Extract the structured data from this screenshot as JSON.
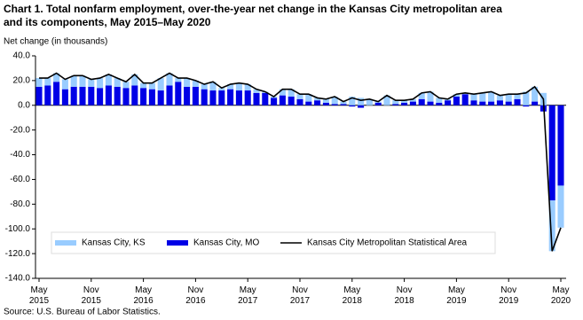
{
  "chart_data": {
    "type": "stacked-bar-line",
    "title": "Chart 1. Total nonfarm employment, over-the-year net change in the Kansas  City metropolitan area and its components, May 2015–May  2020",
    "y_label": "Net change (in thousands)",
    "source": "Source: U.S. Bureau of Labor Statistics.",
    "categories": [
      "May 2015",
      null,
      null,
      null,
      null,
      null,
      "Nov 2015",
      null,
      null,
      null,
      null,
      null,
      "May 2016",
      null,
      null,
      null,
      null,
      null,
      "Nov 2016",
      null,
      null,
      null,
      null,
      null,
      "May 2017",
      null,
      null,
      null,
      null,
      null,
      "Nov 2017",
      null,
      null,
      null,
      null,
      null,
      "May 2018",
      null,
      null,
      null,
      null,
      null,
      "Nov 2018",
      null,
      null,
      null,
      null,
      null,
      "May 2019",
      null,
      null,
      null,
      null,
      null,
      "Nov 2019",
      null,
      null,
      null,
      null,
      null,
      "May 2020"
    ],
    "series": [
      {
        "name": "Kansas City, KS",
        "kind": "bar",
        "color": "#99ccff",
        "values": [
          7,
          6,
          7,
          8,
          9,
          9,
          6,
          8,
          9,
          7,
          5,
          9,
          4,
          5,
          10,
          10,
          3,
          7,
          5,
          4,
          7,
          2,
          4,
          6,
          5,
          3,
          1,
          1,
          5,
          6,
          4,
          6,
          2,
          3,
          6,
          2,
          7,
          6,
          5,
          1,
          8,
          3,
          2,
          2,
          5,
          8,
          4,
          1,
          2,
          1,
          5,
          7,
          8,
          4,
          6,
          4,
          11,
          12,
          10,
          -41,
          -34
        ]
      },
      {
        "name": "Kansas City, MO",
        "kind": "bar",
        "color": "#0000e6",
        "values": [
          15,
          16,
          19,
          13,
          15,
          15,
          15,
          14,
          16,
          15,
          14,
          16,
          14,
          13,
          12,
          16,
          19,
          15,
          15,
          13,
          12,
          12,
          13,
          12,
          12,
          10,
          10,
          6,
          8,
          7,
          5,
          3,
          4,
          2,
          1,
          1,
          -1,
          -2,
          0,
          2,
          0,
          1,
          2,
          3,
          5,
          3,
          2,
          4,
          7,
          9,
          4,
          3,
          3,
          4,
          3,
          5,
          -1,
          3,
          -5,
          -77,
          -65
        ]
      },
      {
        "name": "Kansas City Metropolitan Statistical Area",
        "kind": "line",
        "color": "#000000",
        "values": [
          22,
          22,
          26,
          21,
          24,
          24,
          21,
          22,
          25,
          22,
          19,
          25,
          18,
          18,
          22,
          26,
          22,
          22,
          20,
          17,
          19,
          14,
          17,
          18,
          17,
          13,
          11,
          7,
          13,
          13,
          9,
          9,
          6,
          5,
          7,
          3,
          6,
          4,
          5,
          3,
          8,
          4,
          4,
          5,
          10,
          11,
          6,
          5,
          9,
          10,
          9,
          10,
          11,
          8,
          9,
          9,
          10,
          15,
          5,
          -118,
          -99
        ]
      }
    ],
    "ylim": [
      -140,
      40
    ],
    "yticks": [
      {
        "value": 40,
        "label": "40.0"
      },
      {
        "value": 20,
        "label": "20.0"
      },
      {
        "value": 0,
        "label": "0.0"
      },
      {
        "value": -20,
        "label": "-20.0"
      },
      {
        "value": -40,
        "label": "-40.0"
      },
      {
        "value": -60,
        "label": "-60.0"
      },
      {
        "value": -80,
        "label": "-80.0"
      },
      {
        "value": -100,
        "label": "-100.0"
      },
      {
        "value": -120,
        "label": "-120.0"
      },
      {
        "value": -140,
        "label": "-140.0"
      }
    ],
    "grid": false,
    "legend": "bottom"
  }
}
